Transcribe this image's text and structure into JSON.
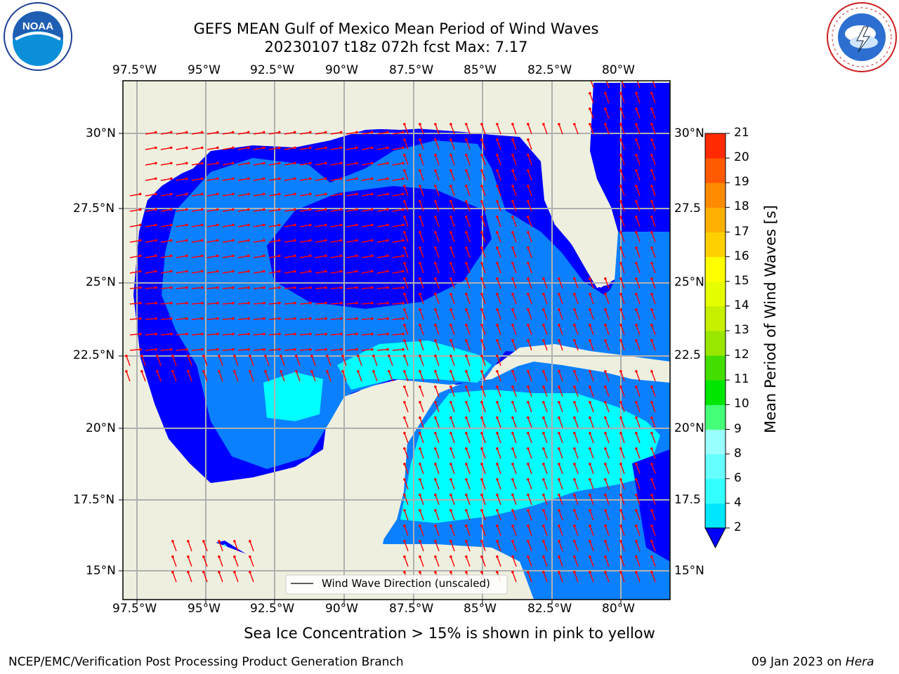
{
  "header": {
    "title_line1": "GEFS MEAN Gulf of Mexico Mean Period of Wind Waves",
    "title_line2": "20230107 t18z 072h fcst   Max: 7.17",
    "noaa_logo_text": "NOAA",
    "nws_logo_text": "NATIONAL WEATHER SERVICE"
  },
  "map": {
    "lon_labels": [
      "97.5°W",
      "95°W",
      "92.5°W",
      "90°W",
      "87.5°W",
      "85°W",
      "82.5°W",
      "80°W"
    ],
    "lat_labels_left": [
      "30°N",
      "27.5°N",
      "25°N",
      "22.5°N",
      "20°N",
      "17.5°N",
      "15°N"
    ],
    "lat_labels_right": [
      "30°N",
      "27.5",
      "25°N",
      "22.5",
      "20°N",
      "17.5",
      "15°N"
    ],
    "legend_label": "Wind Wave Direction (unscaled)"
  },
  "colorbar": {
    "label": "Mean Period of Wind Waves [s]",
    "ticks": [
      "2",
      "4",
      "6",
      "8",
      "9",
      "10",
      "11",
      "12",
      "13",
      "14",
      "15",
      "16",
      "17",
      "18",
      "19",
      "20",
      "21"
    ],
    "colors": [
      "#0040ff",
      "#00e6ff",
      "#33ffff",
      "#66ffff",
      "#99ffff",
      "#44ff77",
      "#00e600",
      "#44dd00",
      "#99e600",
      "#c6f000",
      "#e6ff00",
      "#ffff00",
      "#ffd000",
      "#ffb000",
      "#ff8c00",
      "#ff5a00",
      "#ff2a00",
      "#ff0000"
    ],
    "extend_color": "#0000ff"
  },
  "colors": {
    "land": "#efefdf",
    "level_2_4": "#0000ff",
    "level_4_6": "#0a80ff",
    "level_6_8": "#00ffff",
    "arrows": "#ff0000"
  },
  "footer": {
    "ice_note": "Sea Ice Concentration > 15% is shown in pink to yellow",
    "credit": "NCEP/EMC/Verification Post Processing Product Generation Branch",
    "date": "09 Jan 2023 on",
    "host": "Hera"
  }
}
